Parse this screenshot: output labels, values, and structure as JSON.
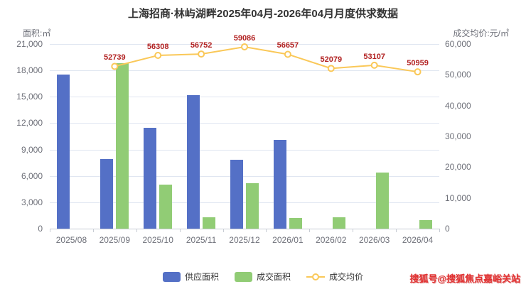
{
  "title": "上海招商·林屿湖畔2025年04月-2026年04月月度供求数据",
  "axes": {
    "left_name": "面积:㎡",
    "right_name": "成交均价:元/㎡"
  },
  "watermark": "搜狐号@搜狐焦点嘉峪关站",
  "colors": {
    "supply_bar": "#5470c6",
    "deal_bar": "#91cc75",
    "price_line": "#fac858",
    "axis_text": "#6e7079",
    "grid_line": "#e0e6f1",
    "point_label": "#b22222",
    "title": "#333333"
  },
  "legend": [
    {
      "key": "supply-area",
      "label": "供应面积",
      "icon": "bar",
      "color": "#5470c6"
    },
    {
      "key": "deal-area",
      "label": "成交面积",
      "icon": "bar",
      "color": "#91cc75"
    },
    {
      "key": "avg-price",
      "label": "成交均价",
      "icon": "line",
      "color": "#fac858"
    }
  ],
  "chart_data": {
    "type": "bar",
    "title": "上海招商·林屿湖畔2025年04月-2026年04月月度供求数据",
    "categories": [
      "2025/08",
      "2025/09",
      "2025/10",
      "2025/11",
      "2025/12",
      "2026/01",
      "2026/02",
      "2026/03",
      "2026/04"
    ],
    "series": [
      {
        "name": "供应面积",
        "type": "bar",
        "yaxis": "left",
        "color": "#5470c6",
        "values": [
          17500,
          7900,
          11500,
          15200,
          7800,
          10100,
          0,
          0,
          0
        ]
      },
      {
        "name": "成交面积",
        "type": "bar",
        "yaxis": "left",
        "color": "#91cc75",
        "values": [
          0,
          18800,
          5000,
          1300,
          5200,
          1200,
          1300,
          6400,
          1000
        ]
      },
      {
        "name": "成交均价",
        "type": "line",
        "yaxis": "right",
        "color": "#fac858",
        "values": [
          null,
          52739,
          56308,
          56752,
          59086,
          56657,
          52079,
          53107,
          50959
        ]
      }
    ],
    "left_axis": {
      "name": "面积:㎡",
      "min": 0,
      "max": 21000,
      "step": 3000
    },
    "right_axis": {
      "name": "成交均价:元/㎡",
      "min": 0,
      "max": 60000,
      "step": 10000
    },
    "legend_position": "bottom",
    "grid": true
  }
}
